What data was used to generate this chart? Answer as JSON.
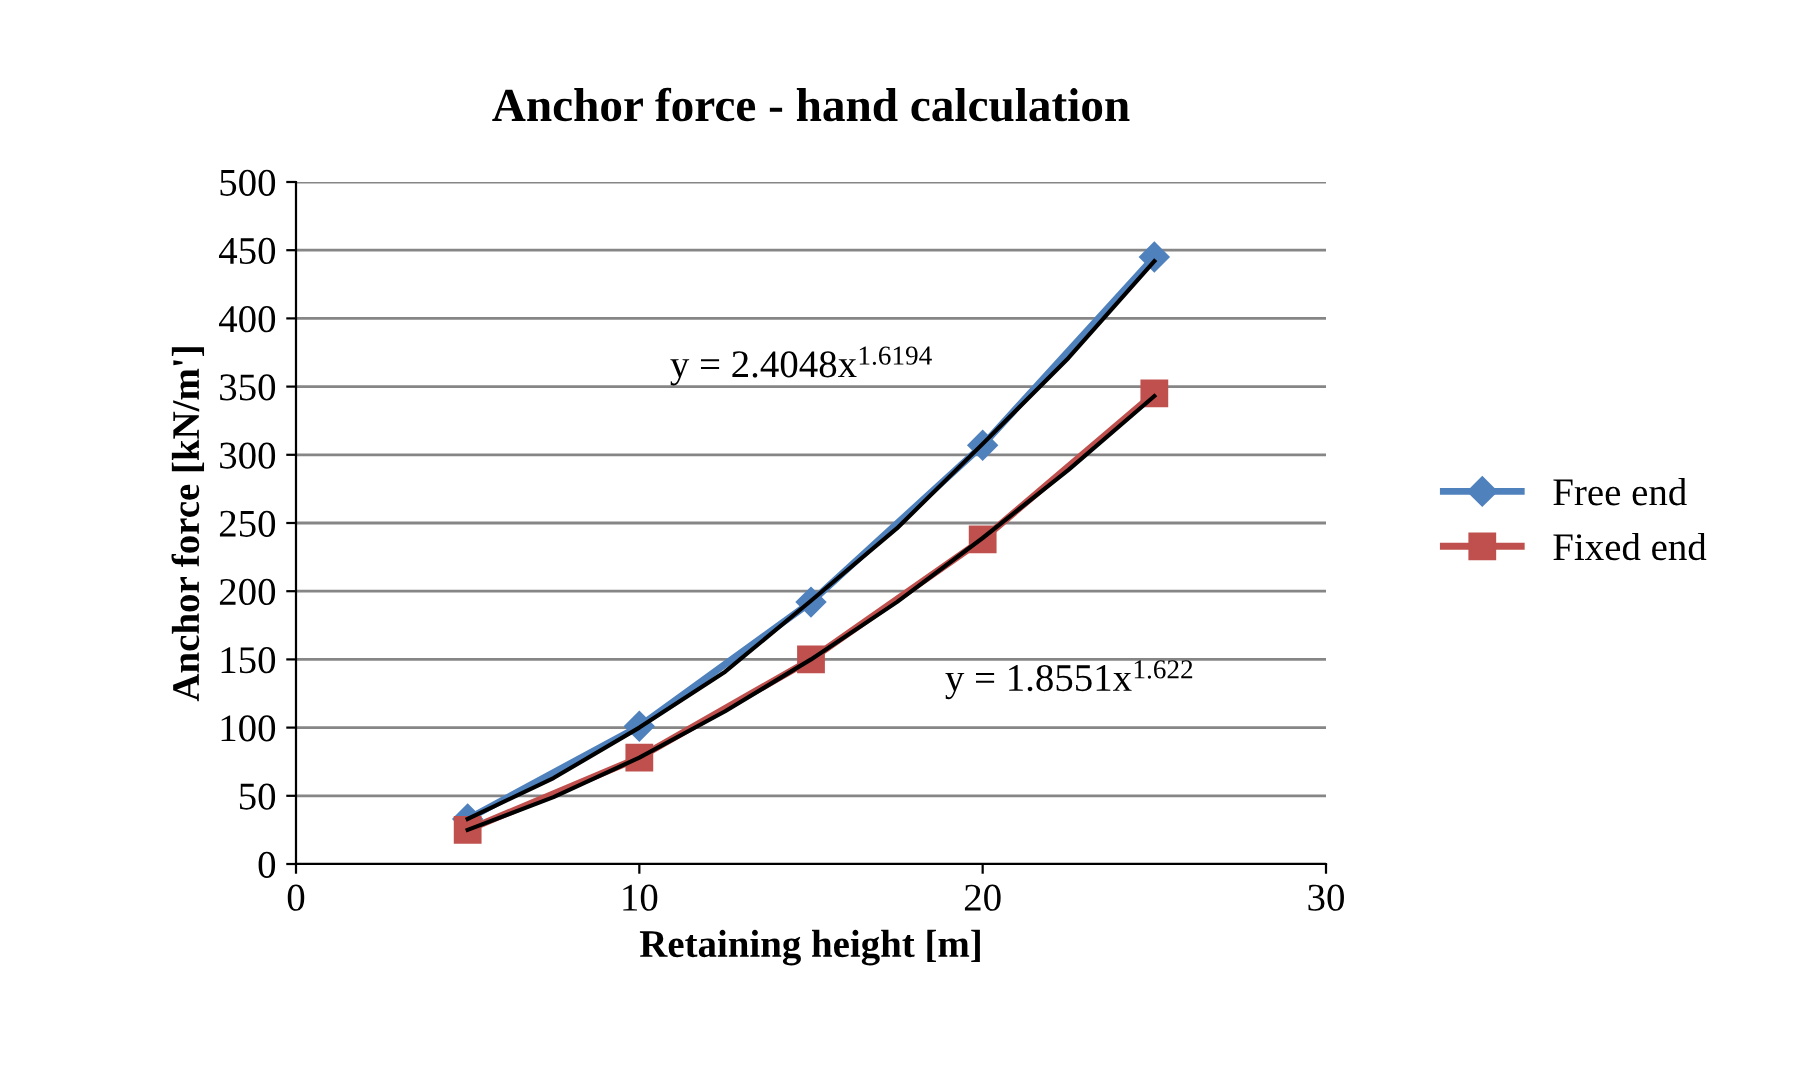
{
  "chart_data": {
    "type": "line",
    "title": "Anchor force - hand calculation",
    "xlabel": "Retaining height [m]",
    "ylabel": "Anchor force [kN/m']",
    "series": [
      {
        "name": "Free end",
        "color": "#4f81bd",
        "marker": "diamond",
        "x": [
          5,
          10,
          15,
          20,
          25
        ],
        "values": [
          33,
          101,
          192,
          307,
          445
        ]
      },
      {
        "name": "Fixed end",
        "color": "#c0504d",
        "marker": "square",
        "x": [
          5,
          10,
          15,
          20,
          25
        ],
        "values": [
          25,
          78,
          150,
          238,
          345
        ]
      },
      {
        "color": "#000000",
        "marker": "none",
        "x": [
          5,
          7.5,
          10,
          12.5,
          15,
          17.5,
          20,
          22.5,
          25
        ],
        "values": [
          33,
          63,
          100,
          141,
          193,
          246,
          308,
          371,
          442
        ]
      },
      {
        "color": "#000000",
        "marker": "none",
        "x": [
          5,
          7.5,
          10,
          12.5,
          15,
          17.5,
          20,
          22.5,
          25
        ],
        "values": [
          25,
          49,
          78,
          112,
          150,
          192,
          239,
          289,
          343
        ]
      }
    ],
    "annotations": [
      "y = 2.4048x$^{1.6194}$",
      "y = 1.8551x$^{1.622}$"
    ],
    "xlim": [
      0,
      30
    ],
    "xticks": [
      0,
      10,
      20,
      30
    ],
    "ylim": [
      0,
      500
    ],
    "yticks": [
      0,
      50,
      100,
      150,
      200,
      250,
      300,
      350,
      400,
      450,
      500
    ],
    "grid": "y",
    "legend": "right",
    "line_style": "solid"
  }
}
